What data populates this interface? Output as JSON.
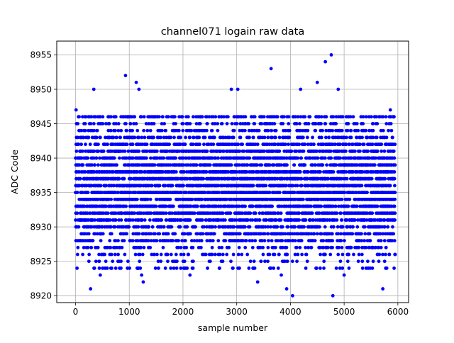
{
  "chart_data": {
    "type": "scatter",
    "title": "channel071 logain raw data",
    "xlabel": "sample number",
    "ylabel": "ADC Code",
    "xlim": [
      -350,
      6200
    ],
    "ylim": [
      8919,
      8957
    ],
    "x_ticks": [
      0,
      1000,
      2000,
      3000,
      4000,
      5000,
      6000
    ],
    "y_ticks": [
      8920,
      8925,
      8930,
      8935,
      8940,
      8945,
      8950,
      8955
    ],
    "grid": true,
    "legend": "none",
    "marker_color": "#0000ff",
    "series": [
      {
        "n_samples": 6000,
        "x_range": [
          0,
          5950
        ],
        "dense_band": [
          8925,
          8945
        ],
        "typical_center": 8936,
        "notable_points": [
          {
            "x": 10,
            "y": 8947
          },
          {
            "x": 280,
            "y": 8921
          },
          {
            "x": 340,
            "y": 8950
          },
          {
            "x": 460,
            "y": 8923
          },
          {
            "x": 930,
            "y": 8952
          },
          {
            "x": 1130,
            "y": 8951
          },
          {
            "x": 1180,
            "y": 8950
          },
          {
            "x": 1260,
            "y": 8922
          },
          {
            "x": 1230,
            "y": 8923
          },
          {
            "x": 2130,
            "y": 8923
          },
          {
            "x": 2900,
            "y": 8950
          },
          {
            "x": 3020,
            "y": 8950
          },
          {
            "x": 3390,
            "y": 8922
          },
          {
            "x": 3640,
            "y": 8953
          },
          {
            "x": 3830,
            "y": 8923
          },
          {
            "x": 3930,
            "y": 8921
          },
          {
            "x": 4040,
            "y": 8920
          },
          {
            "x": 4190,
            "y": 8950
          },
          {
            "x": 4500,
            "y": 8951
          },
          {
            "x": 4650,
            "y": 8954
          },
          {
            "x": 4760,
            "y": 8955
          },
          {
            "x": 4790,
            "y": 8920
          },
          {
            "x": 4890,
            "y": 8950
          },
          {
            "x": 5000,
            "y": 8923
          },
          {
            "x": 5720,
            "y": 8921
          },
          {
            "x": 5860,
            "y": 8947
          }
        ]
      }
    ]
  }
}
